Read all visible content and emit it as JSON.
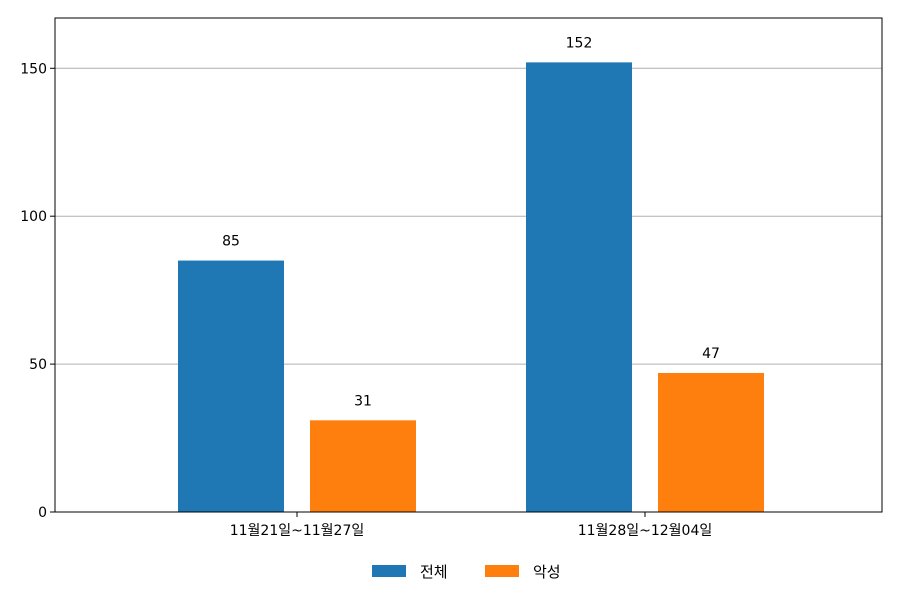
{
  "chart_data": {
    "type": "bar",
    "categories": [
      "11월21일~11월27일",
      "11월28일~12월04일"
    ],
    "series": [
      {
        "name": "전체",
        "values": [
          85,
          152
        ],
        "color": "#1f77b4"
      },
      {
        "name": "악성",
        "values": [
          31,
          47
        ],
        "color": "#ff7f0e"
      }
    ],
    "title": "",
    "xlabel": "",
    "ylabel": "",
    "ylim": [
      0,
      167
    ],
    "yticks": [
      0,
      50,
      100,
      150
    ],
    "grid": "y",
    "legend": "bottom-center",
    "data_labels": true
  }
}
